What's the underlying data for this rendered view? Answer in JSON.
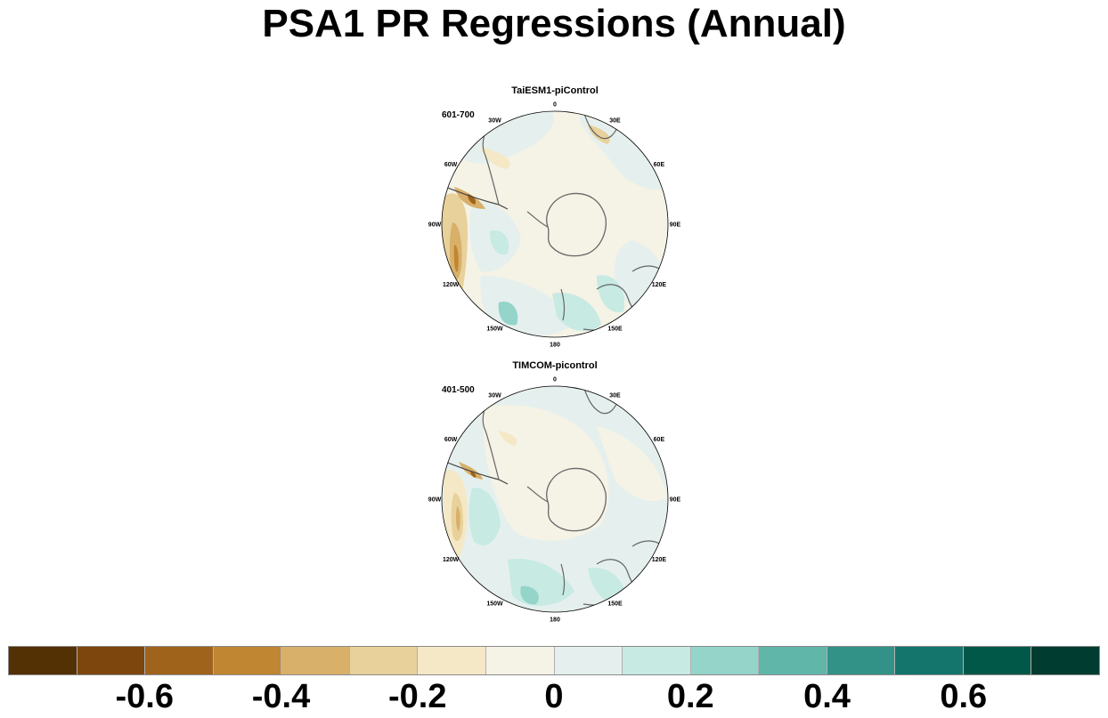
{
  "title": "PSA1 PR Regressions (Annual)",
  "panels": [
    {
      "title": "TaiESM1-piControl",
      "period": "601-700",
      "lon_labels": [
        "0",
        "30E",
        "60E",
        "90E",
        "120E",
        "150E",
        "180",
        "150W",
        "120W",
        "90W",
        "60W",
        "30W"
      ]
    },
    {
      "title": "TIMCOM-picontrol",
      "period": "401-500",
      "lon_labels": [
        "0",
        "30E",
        "60E",
        "90E",
        "120E",
        "150E",
        "180",
        "150W",
        "120W",
        "90W",
        "60W",
        "30W"
      ]
    }
  ],
  "colorbar": {
    "colors": [
      "#543005",
      "#7d460d",
      "#a0631b",
      "#c08632",
      "#d8b06a",
      "#e8d19a",
      "#f4e8c7",
      "#f5f2e6",
      "#e5f0ee",
      "#c7eae3",
      "#94d4c9",
      "#5fb6a9",
      "#339287",
      "#14756d",
      "#015848",
      "#003c30"
    ],
    "tick_labels": [
      "-0.6",
      "-0.4",
      "-0.2",
      "0",
      "0.2",
      "0.4",
      "0.6"
    ],
    "tick_positions_box_index": [
      2,
      4,
      6,
      8,
      10,
      12,
      14
    ]
  }
}
